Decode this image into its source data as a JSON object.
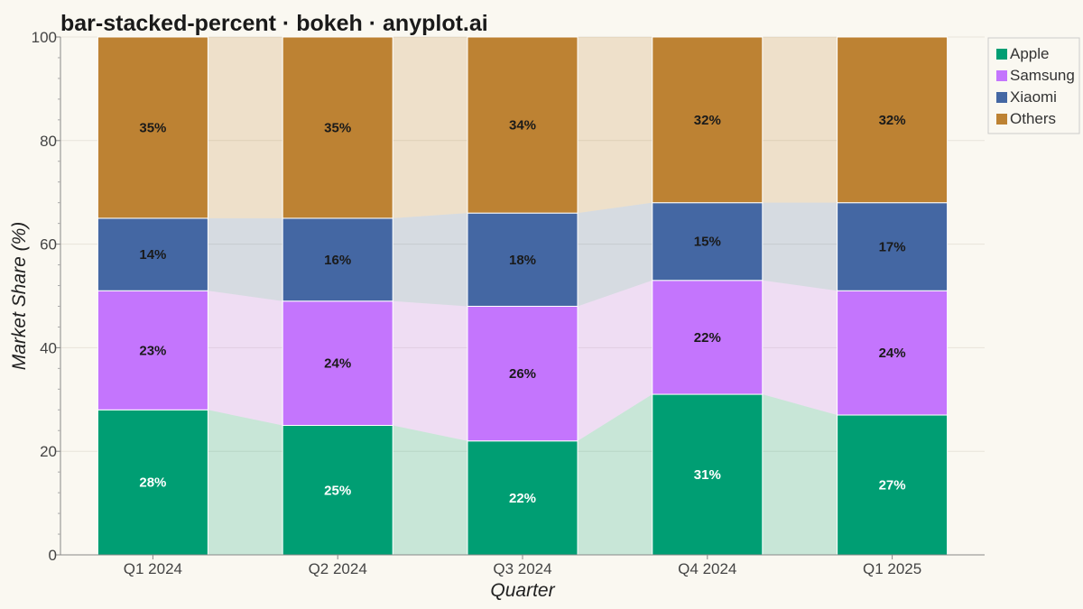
{
  "chart_data": {
    "type": "bar",
    "title": "bar-stacked-percent · bokeh · anyplot.ai",
    "xlabel": "Quarter",
    "ylabel": "Market Share (%)",
    "ylim": [
      0,
      100
    ],
    "yticks": [
      0,
      20,
      40,
      60,
      80,
      100
    ],
    "categories": [
      "Q1 2024",
      "Q2 2024",
      "Q3 2024",
      "Q4 2024",
      "Q1 2025"
    ],
    "series": [
      {
        "name": "Apple",
        "color": "#009E73",
        "label_color": "#ffffff",
        "values": [
          28,
          25,
          22,
          31,
          27
        ]
      },
      {
        "name": "Samsung",
        "color": "#C475FD",
        "label_color": "#1a1a1a",
        "values": [
          23,
          24,
          26,
          22,
          24
        ]
      },
      {
        "name": "Xiaomi",
        "color": "#4467A3",
        "label_color": "#1a1a1a",
        "values": [
          14,
          16,
          18,
          15,
          17
        ]
      },
      {
        "name": "Others",
        "color": "#BD8233",
        "label_color": "#1a1a1a",
        "values": [
          35,
          35,
          34,
          32,
          32
        ]
      }
    ],
    "data_labels": [
      [
        "28%",
        "25%",
        "22%",
        "31%",
        "27%"
      ],
      [
        "23%",
        "24%",
        "26%",
        "22%",
        "24%"
      ],
      [
        "14%",
        "16%",
        "18%",
        "15%",
        "17%"
      ],
      [
        "35%",
        "35%",
        "34%",
        "32%",
        "32%"
      ]
    ],
    "connector_bands": true,
    "grid": true,
    "legend_position": "top-right"
  }
}
